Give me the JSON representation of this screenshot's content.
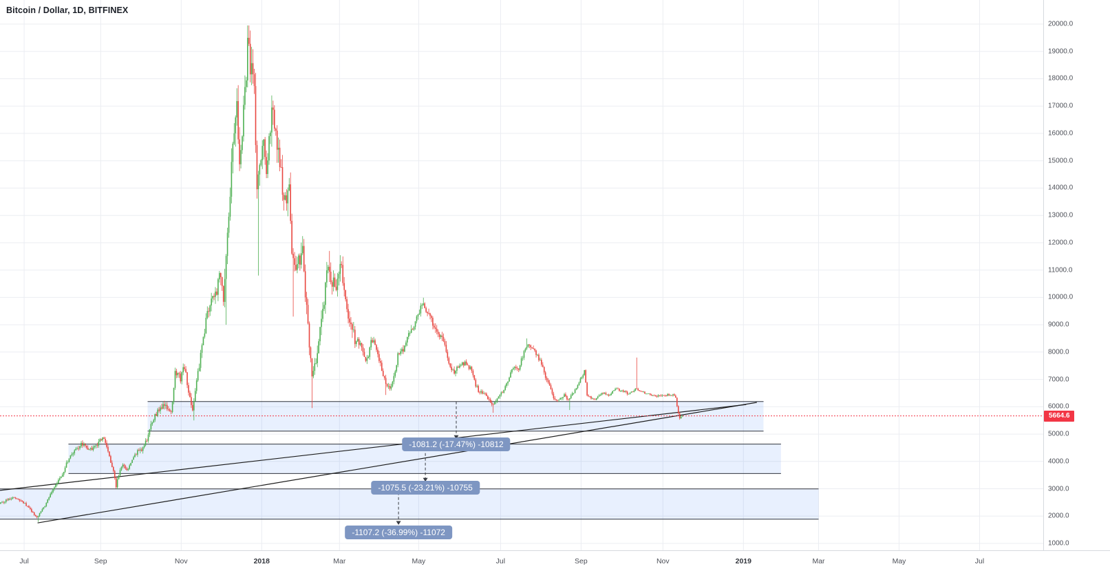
{
  "header": {
    "title": "Bitcoin / Dollar, 1D, BITFINEX",
    "symbol": "Bitcoin / Dollar",
    "interval": "1D",
    "exchange": "BITFINEX"
  },
  "price_axis": {
    "min": 1000,
    "max": 20000,
    "step": 1000,
    "current_price": 5664.6,
    "current_price_label": "5664.6"
  },
  "colors": {
    "up": "#4caf50",
    "down": "#e8463f",
    "zone_fill": "rgba(49,117,245,0.11)",
    "zone_border": "#2f333b",
    "label_bg": "#7e96c2",
    "price_line": "#f23645",
    "grid": "#ebedf2",
    "trendline": "#1c1c1c",
    "arrow": "#393c43"
  },
  "chart_data": {
    "type": "candlestick",
    "title": "Bitcoin / Dollar, 1D, BITFINEX",
    "symbol": "BTC/USD",
    "interval": "1D",
    "exchange": "BITFINEX",
    "current_price": 5664.6,
    "y_axis": {
      "min": 1000,
      "max": 20000,
      "step": 1000
    },
    "x_ticks": [
      {
        "label": "Jul",
        "day": 18
      },
      {
        "label": "Sep",
        "day": 75
      },
      {
        "label": "Nov",
        "day": 135
      },
      {
        "label": "2018",
        "day": 195
      },
      {
        "label": "Mar",
        "day": 253
      },
      {
        "label": "May",
        "day": 312
      },
      {
        "label": "Jul",
        "day": 373
      },
      {
        "label": "Sep",
        "day": 433
      },
      {
        "label": "Nov",
        "day": 494
      },
      {
        "label": "2019",
        "day": 554
      },
      {
        "label": "Mar",
        "day": 610
      },
      {
        "label": "May",
        "day": 670
      },
      {
        "label": "Jul",
        "day": 730
      }
    ],
    "zones": [
      {
        "top": 6190,
        "bottom": 5109,
        "start_day": 110,
        "end_day": 569
      },
      {
        "top": 4634,
        "bottom": 3558,
        "start_day": 51,
        "end_day": 582
      },
      {
        "top": 2993,
        "bottom": 1886,
        "start_day": 0,
        "end_day": 610
      }
    ],
    "trendlines": [
      {
        "from": [
          28,
          1750
        ],
        "to": [
          564,
          6160
        ]
      },
      {
        "from": [
          0,
          2940
        ],
        "to": [
          556,
          6080
        ]
      }
    ],
    "measurements": [
      {
        "label": "-1081.2 (-17.47%) -10812",
        "day": 340,
        "price": 4620,
        "arrow_from": 6190,
        "arrow_to": 4820
      },
      {
        "label": "-1075.5 (-23.21%) -10755",
        "day": 317,
        "price": 3040,
        "arrow_from": 4480,
        "arrow_to": 3260
      },
      {
        "label": "-1107.2 (-36.99%) -11072",
        "day": 297,
        "price": 1400,
        "arrow_from": 2870,
        "arrow_to": 1680
      }
    ],
    "price_path": [
      [
        0,
        2450
      ],
      [
        6,
        2600
      ],
      [
        10,
        2700
      ],
      [
        14,
        2600
      ],
      [
        18,
        2500
      ],
      [
        22,
        2300
      ],
      [
        25,
        2100
      ],
      [
        28,
        1950
      ],
      [
        31,
        2150
      ],
      [
        34,
        2400
      ],
      [
        38,
        2800
      ],
      [
        42,
        3150
      ],
      [
        46,
        3400
      ],
      [
        50,
        3900
      ],
      [
        54,
        4300
      ],
      [
        58,
        4500
      ],
      [
        62,
        4650
      ],
      [
        66,
        4400
      ],
      [
        70,
        4500
      ],
      [
        73,
        4650
      ],
      [
        75,
        4750
      ],
      [
        77,
        4900
      ],
      [
        80,
        4500
      ],
      [
        82,
        4200
      ],
      [
        85,
        3600
      ],
      [
        87,
        3100
      ],
      [
        90,
        3700
      ],
      [
        92,
        3900
      ],
      [
        95,
        3650
      ],
      [
        98,
        3900
      ],
      [
        101,
        4200
      ],
      [
        103,
        4350
      ],
      [
        106,
        4400
      ],
      [
        110,
        4800
      ],
      [
        113,
        5300
      ],
      [
        115,
        5600
      ],
      [
        119,
        5900
      ],
      [
        123,
        6100
      ],
      [
        126,
        5900
      ],
      [
        128,
        5800
      ],
      [
        131,
        7200
      ],
      [
        134,
        7100
      ],
      [
        135,
        7000
      ],
      [
        138,
        7500
      ],
      [
        141,
        6600
      ],
      [
        144,
        5900
      ],
      [
        146,
        6500
      ],
      [
        148,
        7200
      ],
      [
        151,
        8200
      ],
      [
        153,
        8800
      ],
      [
        155,
        9500
      ],
      [
        159,
        9900
      ],
      [
        162,
        10300
      ],
      [
        164,
        11000
      ],
      [
        166,
        10200
      ],
      [
        167,
        9900
      ],
      [
        169,
        11500
      ],
      [
        172,
        14000
      ],
      [
        174,
        15800
      ],
      [
        176,
        16600
      ],
      [
        177,
        16800
      ],
      [
        179,
        15000
      ],
      [
        181,
        16000
      ],
      [
        183,
        17500
      ],
      [
        185,
        19200
      ],
      [
        187,
        18500
      ],
      [
        189,
        18200
      ],
      [
        190,
        17500
      ],
      [
        192,
        13800
      ],
      [
        194,
        14500
      ],
      [
        197,
        15500
      ],
      [
        199,
        14800
      ],
      [
        201,
        15800
      ],
      [
        203,
        16900
      ],
      [
        205,
        16500
      ],
      [
        207,
        15600
      ],
      [
        209,
        14800
      ],
      [
        211,
        14100
      ],
      [
        213,
        13500
      ],
      [
        215,
        13900
      ],
      [
        216,
        14200
      ],
      [
        218,
        11500
      ],
      [
        220,
        11000
      ],
      [
        222,
        11100
      ],
      [
        224,
        11400
      ],
      [
        226,
        11800
      ],
      [
        228,
        10200
      ],
      [
        230,
        9200
      ],
      [
        231,
        8300
      ],
      [
        233,
        7000
      ],
      [
        235,
        7400
      ],
      [
        237,
        8100
      ],
      [
        239,
        8800
      ],
      [
        241,
        9500
      ],
      [
        243,
        10400
      ],
      [
        245,
        11400
      ],
      [
        247,
        10800
      ],
      [
        249,
        10500
      ],
      [
        251,
        10400
      ],
      [
        253,
        10800
      ],
      [
        255,
        11200
      ],
      [
        257,
        10400
      ],
      [
        259,
        9500
      ],
      [
        261,
        9200
      ],
      [
        263,
        8800
      ],
      [
        265,
        8500
      ],
      [
        267,
        8400
      ],
      [
        269,
        8300
      ],
      [
        271,
        8100
      ],
      [
        273,
        7700
      ],
      [
        275,
        7900
      ],
      [
        277,
        8500
      ],
      [
        279,
        8400
      ],
      [
        281,
        8100
      ],
      [
        283,
        7700
      ],
      [
        285,
        7400
      ],
      [
        287,
        7000
      ],
      [
        289,
        6800
      ],
      [
        291,
        6700
      ],
      [
        293,
        6900
      ],
      [
        295,
        7300
      ],
      [
        297,
        7900
      ],
      [
        299,
        8000
      ],
      [
        301,
        8100
      ],
      [
        303,
        8300
      ],
      [
        305,
        8600
      ],
      [
        307,
        8800
      ],
      [
        309,
        9000
      ],
      [
        311,
        9200
      ],
      [
        313,
        9400
      ],
      [
        315,
        9750
      ],
      [
        317,
        9600
      ],
      [
        319,
        9400
      ],
      [
        321,
        9300
      ],
      [
        323,
        9000
      ],
      [
        325,
        8800
      ],
      [
        327,
        8600
      ],
      [
        329,
        8500
      ],
      [
        331,
        8400
      ],
      [
        333,
        8000
      ],
      [
        335,
        7600
      ],
      [
        337,
        7400
      ],
      [
        339,
        7300
      ],
      [
        341,
        7400
      ],
      [
        343,
        7450
      ],
      [
        345,
        7550
      ],
      [
        347,
        7600
      ],
      [
        349,
        7500
      ],
      [
        351,
        7400
      ],
      [
        353,
        7100
      ],
      [
        355,
        6800
      ],
      [
        357,
        6600
      ],
      [
        359,
        6550
      ],
      [
        361,
        6520
      ],
      [
        363,
        6400
      ],
      [
        365,
        6250
      ],
      [
        367,
        6100
      ],
      [
        369,
        6120
      ],
      [
        371,
        6250
      ],
      [
        373,
        6400
      ],
      [
        375,
        6550
      ],
      [
        377,
        6700
      ],
      [
        379,
        6900
      ],
      [
        381,
        7200
      ],
      [
        383,
        7450
      ],
      [
        385,
        7350
      ],
      [
        387,
        7400
      ],
      [
        389,
        7700
      ],
      [
        391,
        8000
      ],
      [
        393,
        8250
      ],
      [
        395,
        8250
      ],
      [
        397,
        8150
      ],
      [
        399,
        8000
      ],
      [
        401,
        7850
      ],
      [
        403,
        7700
      ],
      [
        405,
        7500
      ],
      [
        407,
        7100
      ],
      [
        409,
        6900
      ],
      [
        411,
        6600
      ],
      [
        413,
        6300
      ],
      [
        415,
        6250
      ],
      [
        417,
        6220
      ],
      [
        419,
        6300
      ],
      [
        421,
        6400
      ],
      [
        423,
        6300
      ],
      [
        425,
        6350
      ],
      [
        427,
        6450
      ],
      [
        429,
        6600
      ],
      [
        431,
        6800
      ],
      [
        433,
        7000
      ],
      [
        435,
        7200
      ],
      [
        436,
        7300
      ],
      [
        438,
        6400
      ],
      [
        440,
        6350
      ],
      [
        442,
        6300
      ],
      [
        444,
        6250
      ],
      [
        446,
        6350
      ],
      [
        448,
        6450
      ],
      [
        450,
        6500
      ],
      [
        452,
        6450
      ],
      [
        454,
        6400
      ],
      [
        456,
        6500
      ],
      [
        458,
        6600
      ],
      [
        460,
        6650
      ],
      [
        462,
        6600
      ],
      [
        464,
        6600
      ],
      [
        466,
        6550
      ],
      [
        468,
        6480
      ],
      [
        470,
        6500
      ],
      [
        472,
        6550
      ],
      [
        474,
        6650
      ],
      [
        476,
        6600
      ],
      [
        478,
        6550
      ],
      [
        480,
        6520
      ],
      [
        482,
        6500
      ],
      [
        484,
        6470
      ],
      [
        486,
        6440
      ],
      [
        488,
        6420
      ],
      [
        490,
        6400
      ],
      [
        492,
        6390
      ],
      [
        494,
        6400
      ],
      [
        496,
        6410
      ],
      [
        498,
        6430
      ],
      [
        500,
        6450
      ],
      [
        502,
        6420
      ],
      [
        504,
        6350
      ],
      [
        505,
        6000
      ],
      [
        506,
        5750
      ],
      [
        507,
        5600
      ],
      [
        508,
        5664.6
      ]
    ],
    "spikes": [
      {
        "day": 28,
        "low": 1790
      },
      {
        "day": 87,
        "low": 2980
      },
      {
        "day": 144,
        "low": 5500
      },
      {
        "day": 168,
        "low": 9000
      },
      {
        "day": 177,
        "high": 17250
      },
      {
        "day": 184,
        "high": 19900
      },
      {
        "day": 185,
        "high": 19700
      },
      {
        "day": 192,
        "low": 10800
      },
      {
        "day": 203,
        "high": 17200
      },
      {
        "day": 218,
        "low": 9300
      },
      {
        "day": 232,
        "low": 5950
      },
      {
        "day": 245,
        "high": 11700
      },
      {
        "day": 255,
        "high": 11500
      },
      {
        "day": 287,
        "low": 6430
      },
      {
        "day": 315,
        "high": 9990
      },
      {
        "day": 367,
        "low": 5780
      },
      {
        "day": 392,
        "high": 8500
      },
      {
        "day": 424,
        "low": 5880
      },
      {
        "day": 474,
        "high": 7800
      },
      {
        "day": 506,
        "low": 5525
      }
    ]
  }
}
